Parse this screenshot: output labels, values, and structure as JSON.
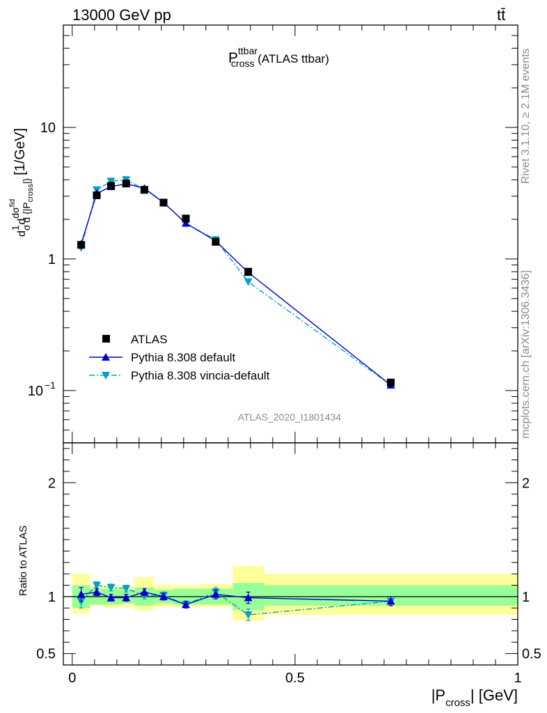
{
  "header": {
    "left": "13000 GeV pp",
    "right": "tt̄"
  },
  "side": {
    "rivet": "Rivet 3.1.10, ≥ 2.1M events",
    "mcplots": "mcplots.cern.ch [arXiv:1306.3436]"
  },
  "chart_data": [
    {
      "type": "scatter",
      "title_main": "P",
      "title_sup": "ttbar",
      "title_sub": "cross",
      "title_rest": " (ATLAS ttbar)",
      "analysis_id": "ATLAS_2020_I1801434",
      "yscale": "log",
      "ylim": [
        0.04,
        60
      ],
      "xlim": [
        -0.02,
        1.0
      ],
      "ylabel": "dσ/d{|P_cross|} normalized [1/GeV]",
      "ylabel_unit": "[1/GeV]",
      "yticks": [
        {
          "value": 0.1,
          "label": "10",
          "exp": "−1"
        },
        {
          "value": 1,
          "label": "1",
          "exp": ""
        },
        {
          "value": 10,
          "label": "10",
          "exp": ""
        }
      ],
      "legend": {
        "placement": "bottom-left",
        "entries": [
          "ATLAS",
          "Pythia 8.308 default",
          "Pythia 8.308 vincia-default"
        ]
      },
      "x": [
        0.02,
        0.055,
        0.087,
        0.121,
        0.162,
        0.205,
        0.255,
        0.322,
        0.395,
        0.715
      ],
      "bin_edges": [
        0.0,
        0.04,
        0.07,
        0.104,
        0.14,
        0.184,
        0.226,
        0.285,
        0.36,
        0.43,
        1.0
      ],
      "series": [
        {
          "name": "ATLAS",
          "color": "#000000",
          "marker": "square",
          "values": [
            1.28,
            3.05,
            3.6,
            3.75,
            3.35,
            2.68,
            2.03,
            1.35,
            0.8,
            0.115
          ]
        },
        {
          "name": "Pythia 8.308 default",
          "color": "#0000cc",
          "marker": "triangle-up",
          "values": [
            1.3,
            3.15,
            3.55,
            3.72,
            3.45,
            2.68,
            1.87,
            1.37,
            0.79,
            0.11
          ],
          "errors": [
            0.06,
            0.08,
            0.08,
            0.08,
            0.08,
            0.06,
            0.05,
            0.04,
            0.03,
            0.004
          ]
        },
        {
          "name": "Pythia 8.308 vincia-default",
          "color": "#00a0c8",
          "marker": "triangle-down",
          "values": [
            1.22,
            3.35,
            3.9,
            4.0,
            3.38,
            2.7,
            1.86,
            1.4,
            0.67,
            0.11
          ],
          "errors": [
            0.08,
            0.1,
            0.1,
            0.1,
            0.1,
            0.07,
            0.05,
            0.05,
            0.03,
            0.004
          ]
        }
      ]
    },
    {
      "type": "scatter",
      "ylabel": "Ratio to ATLAS",
      "xlabel_main": "|P",
      "xlabel_sub": "cross",
      "xlabel_rest": "| [GeV]",
      "ylim": [
        0.4,
        2.35
      ],
      "xlim": [
        -0.02,
        1.0
      ],
      "xticks": [
        {
          "value": 0,
          "label": "0"
        },
        {
          "value": 0.5,
          "label": "0.5"
        },
        {
          "value": 1,
          "label": "1"
        }
      ],
      "yticks": [
        {
          "value": 0.5,
          "label": "0.5"
        },
        {
          "value": 1,
          "label": "1"
        },
        {
          "value": 2,
          "label": "2"
        }
      ],
      "bands": {
        "inner_color": "#99ff99",
        "outer_color": "#ffff99",
        "inner": [
          [
            0.9,
            1.1
          ],
          [
            0.93,
            1.07
          ],
          [
            0.93,
            1.07
          ],
          [
            0.94,
            1.06
          ],
          [
            0.92,
            1.08
          ],
          [
            0.94,
            1.06
          ],
          [
            0.93,
            1.07
          ],
          [
            0.93,
            1.07
          ],
          [
            0.88,
            1.12
          ],
          [
            0.92,
            1.1
          ]
        ],
        "outer": [
          [
            0.85,
            1.2
          ],
          [
            0.92,
            1.09
          ],
          [
            0.9,
            1.1
          ],
          [
            0.91,
            1.09
          ],
          [
            0.88,
            1.17
          ],
          [
            0.91,
            1.1
          ],
          [
            0.91,
            1.1
          ],
          [
            0.91,
            1.11
          ],
          [
            0.79,
            1.27
          ],
          [
            0.84,
            1.2
          ]
        ]
      },
      "series": [
        {
          "name": "Pythia 8.308 default",
          "color": "#0000cc",
          "marker": "triangle-up",
          "values": [
            1.02,
            1.04,
            0.99,
            0.99,
            1.04,
            1.0,
            0.93,
            1.02,
            0.99,
            0.96
          ],
          "errors": [
            0.06,
            0.03,
            0.03,
            0.03,
            0.03,
            0.03,
            0.03,
            0.04,
            0.05,
            0.04
          ]
        },
        {
          "name": "Pythia 8.308 vincia-default",
          "color": "#00a0c8",
          "marker": "triangle-down",
          "values": [
            0.96,
            1.1,
            1.08,
            1.07,
            1.01,
            1.01,
            0.93,
            1.04,
            0.84,
            0.96
          ],
          "errors": [
            0.06,
            0.03,
            0.03,
            0.03,
            0.03,
            0.03,
            0.03,
            0.04,
            0.05,
            0.04
          ]
        }
      ]
    }
  ]
}
